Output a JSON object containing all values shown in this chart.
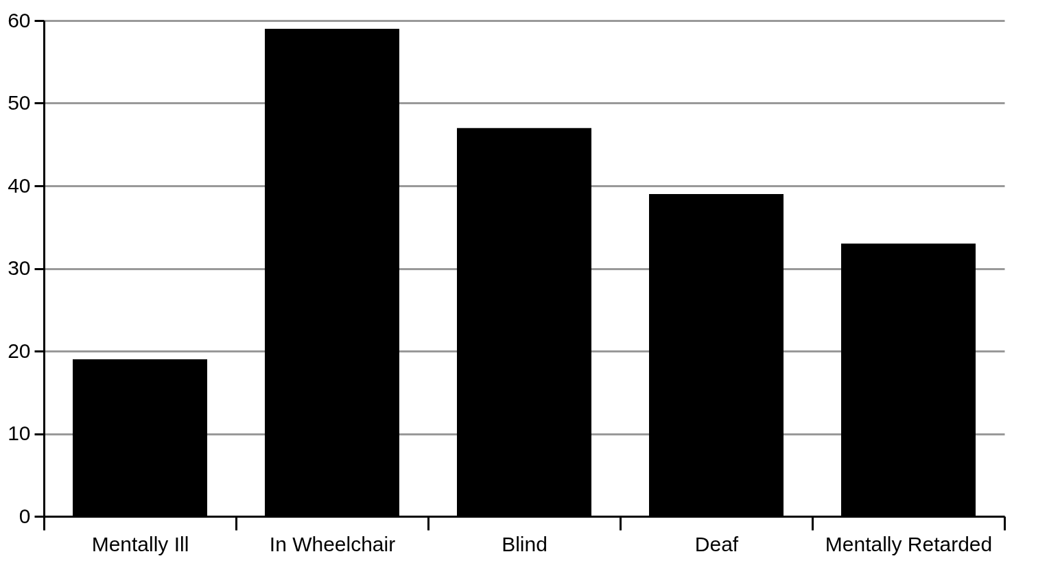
{
  "chart_data": {
    "type": "bar",
    "categories": [
      "Mentally Ill",
      "In Wheelchair",
      "Blind",
      "Deaf",
      "Mentally Retarded"
    ],
    "values": [
      19,
      59,
      47,
      39,
      33
    ],
    "color": "#000000",
    "ylim": [
      0,
      60
    ],
    "yticks": [
      0,
      10,
      20,
      30,
      40,
      50,
      60
    ],
    "grid": "y"
  }
}
